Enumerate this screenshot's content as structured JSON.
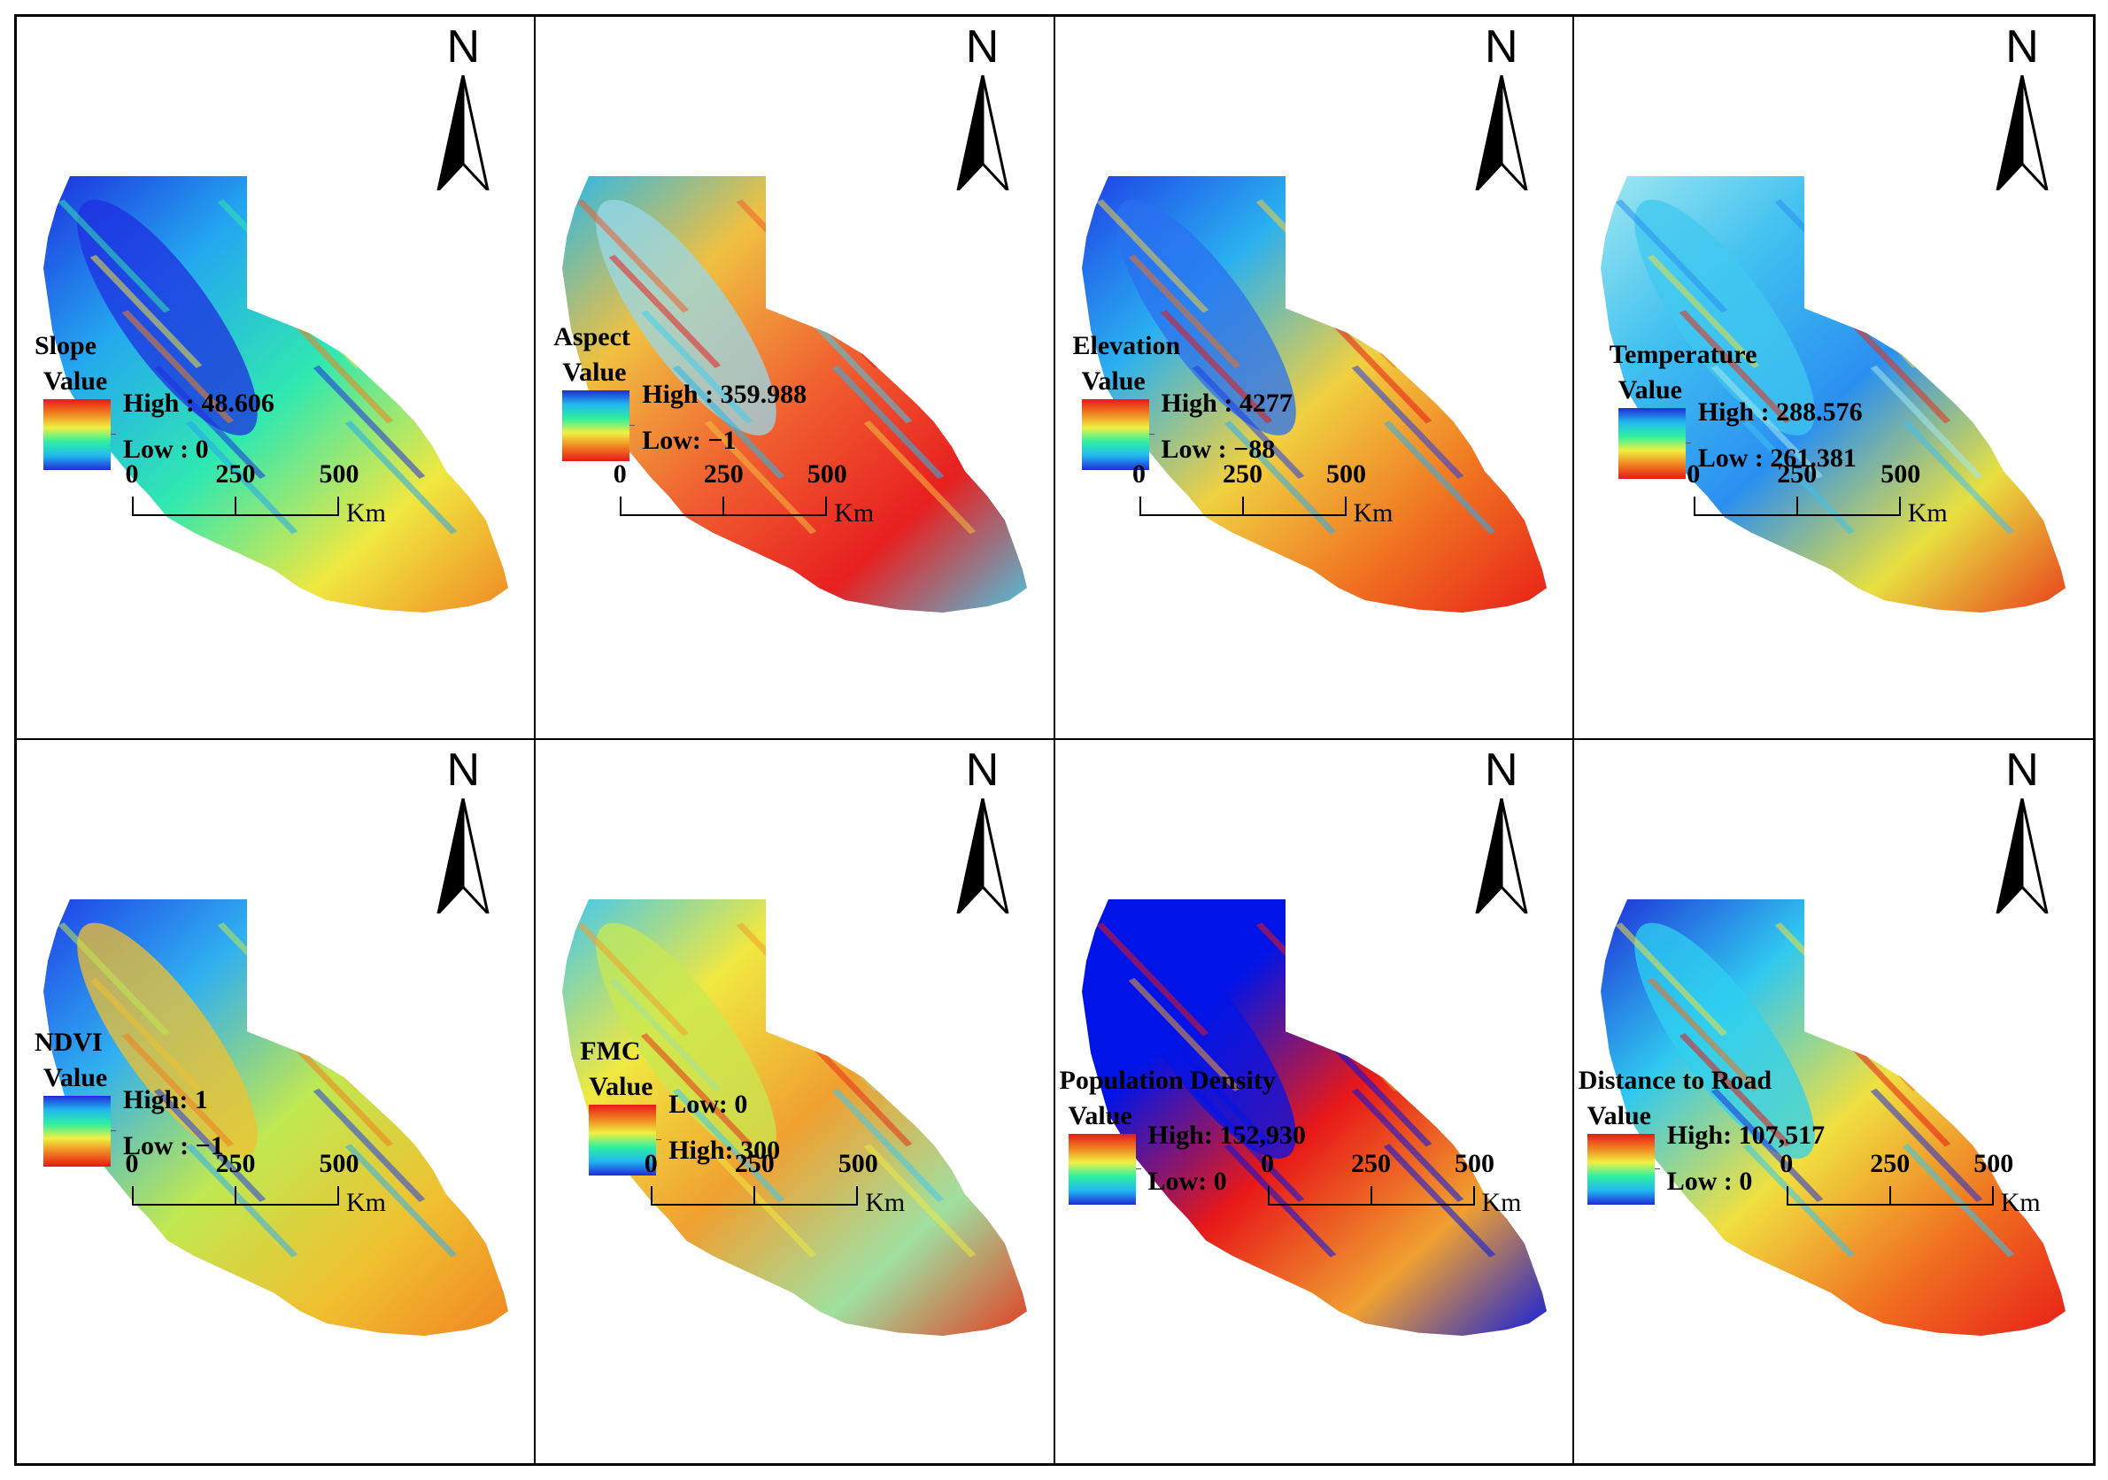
{
  "north_letter": "N",
  "scale": {
    "labels": [
      "0",
      "250",
      "500"
    ],
    "unit": "Km"
  },
  "value_label": "Value",
  "colors": {
    "ramp_blue_to_red": [
      "#1f2bd8",
      "#21b8f0",
      "#2ef0a0",
      "#f0f040",
      "#f08020",
      "#e81818"
    ],
    "ramp_red_to_blue": [
      "#e81818",
      "#f08020",
      "#f0f040",
      "#2ef0a0",
      "#21b8f0",
      "#1f2bd8"
    ]
  },
  "panels": [
    {
      "title": "Slope",
      "high": "High : 48.606",
      "low": "Low : 0",
      "ramp": "high-red",
      "map_fill": "slope",
      "order": "high-first"
    },
    {
      "title": "Aspect",
      "high": "High : 359.988",
      "low": "Low: −1",
      "ramp": "high-blue",
      "map_fill": "aspect",
      "order": "high-first"
    },
    {
      "title": "Elevation",
      "high": "High : 4277",
      "low": "Low : −88",
      "ramp": "high-red",
      "map_fill": "elevation",
      "order": "high-first"
    },
    {
      "title": "Temperature",
      "high": "High : 288.576",
      "low": "Low : 261.381",
      "ramp": "high-blue",
      "map_fill": "temperature",
      "order": "high-first"
    },
    {
      "title": "NDVI",
      "high": "High: 1",
      "low": "Low : −1",
      "ramp": "high-blue",
      "map_fill": "ndvi",
      "order": "high-first"
    },
    {
      "title": "FMC",
      "high": "High:  300",
      "low": "Low:  0",
      "ramp": "high-red",
      "map_fill": "fmc",
      "order": "low-first"
    },
    {
      "title": "Population Density",
      "high": "High: 152,930",
      "low": "Low: 0",
      "ramp": "high-red",
      "map_fill": "population",
      "order": "high-first"
    },
    {
      "title": "Distance to Road",
      "high": "High: 107,517",
      "low": "Low : 0",
      "ramp": "high-red",
      "map_fill": "road",
      "order": "high-first"
    }
  ]
}
